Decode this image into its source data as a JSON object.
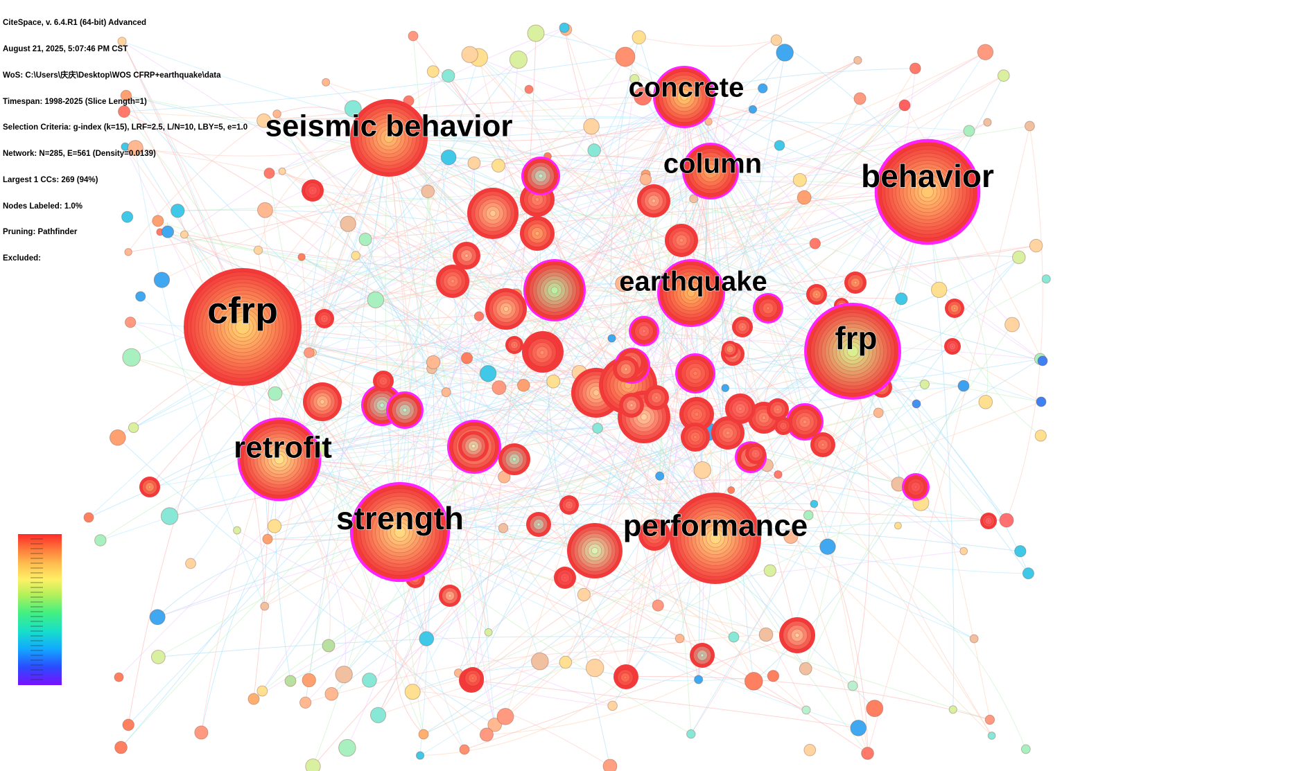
{
  "header": {
    "lines": [
      "CiteSpace, v. 6.4.R1 (64-bit) Advanced",
      "August 21, 2025, 5:07:46 PM CST",
      "WoS: C:\\Users\\庆庆\\Desktop\\WOS CFRP+earthquake\\data",
      "Timespan: 1998-2025 (Slice Length=1)",
      "Selection Criteria: g-index (k=15), LRF=2.5, L/N=10, LBY=5, e=1.0",
      "Network: N=285, E=561 (Density=0.0139)",
      "Largest 1 CCs: 269 (94%)",
      "Nodes Labeled: 1.0%",
      "Pruning: Pathfinder",
      "Excluded:"
    ]
  },
  "colors": {
    "burst_ring": "#ff22ff",
    "scale": [
      "#7a10ff",
      "#2a4cff",
      "#12a9ff",
      "#18e0c8",
      "#44f080",
      "#b6f05a",
      "#fff066",
      "#ffc050",
      "#ff7a3a",
      "#ff2a2a"
    ]
  },
  "keywords": [
    {
      "id": "cfrp",
      "label": "cfrp",
      "burst": false
    },
    {
      "id": "behavior",
      "label": "behavior",
      "burst": true
    },
    {
      "id": "performance",
      "label": "performance",
      "burst": false
    },
    {
      "id": "frp",
      "label": "frp",
      "burst": true
    },
    {
      "id": "strength",
      "label": "strength",
      "burst": true
    },
    {
      "id": "seismic",
      "label": "seismic behavior",
      "burst": false
    },
    {
      "id": "retrofit",
      "label": "retrofit",
      "burst": true
    },
    {
      "id": "earthquake",
      "label": "earthquake",
      "burst": true
    },
    {
      "id": "column",
      "label": "column",
      "burst": true
    },
    {
      "id": "concrete",
      "label": "concrete",
      "burst": true
    }
  ]
}
